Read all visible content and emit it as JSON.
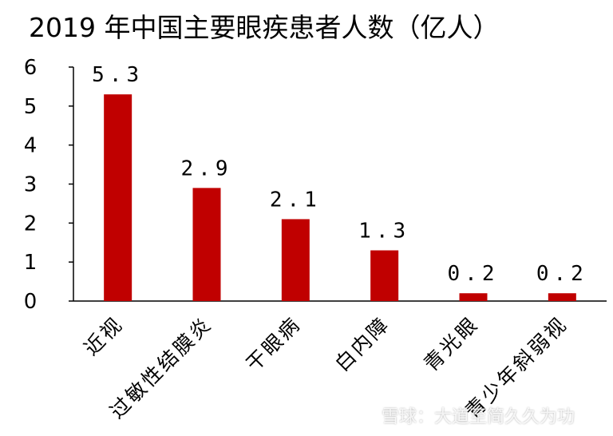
{
  "chart_data": {
    "type": "bar",
    "title": "2019 年中国主要眼疾患者人数（亿人）",
    "categories": [
      "近视",
      "过敏性结膜炎",
      "干眼病",
      "白内障",
      "青光眼",
      "青少年斜弱视"
    ],
    "values": [
      5.3,
      2.9,
      2.1,
      1.3,
      0.2,
      0.2
    ],
    "value_labels": [
      "5.3",
      "2.9",
      "2.1",
      "1.3",
      "0.2",
      "0.2"
    ],
    "yticks": [
      0,
      1,
      2,
      3,
      4,
      5,
      6
    ],
    "ylim": [
      0,
      6
    ],
    "xlabel": "",
    "ylabel": "",
    "grid": false,
    "bar_color": "#C00000"
  },
  "watermark": "雪球：大道至简久久为功"
}
